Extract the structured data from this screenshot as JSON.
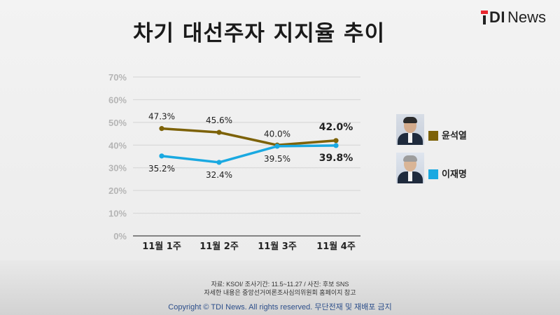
{
  "header": {
    "title": "차기 대선주자 지지율 추이",
    "logo": {
      "mark": "T",
      "tdi": "DI",
      "news": "News"
    }
  },
  "chart_data": {
    "type": "line",
    "categories": [
      "11월 1주",
      "11월 2주",
      "11월 3주",
      "11월 4주"
    ],
    "ylim": [
      0,
      70
    ],
    "yticks": [
      0,
      10,
      20,
      30,
      40,
      50,
      60,
      70
    ],
    "ytick_labels": [
      "0%",
      "10%",
      "20%",
      "30%",
      "40%",
      "50%",
      "60%",
      "70%"
    ],
    "grid": true,
    "legend_position": "right",
    "series": [
      {
        "name": "윤석열",
        "color": "#7d6208",
        "values": [
          47.3,
          45.6,
          40.0,
          42.0
        ],
        "labels": [
          "47.3%",
          "45.6%",
          "40.0%",
          "42.0%"
        ]
      },
      {
        "name": "이재명",
        "color": "#1aa9e1",
        "values": [
          35.2,
          32.4,
          39.5,
          39.8
        ],
        "labels": [
          "35.2%",
          "32.4%",
          "39.5%",
          "39.8%"
        ]
      }
    ]
  },
  "legend": {
    "items": [
      {
        "label": "윤석열",
        "photo": "candidate-photo",
        "color": "#7d6208"
      },
      {
        "label": "이재명",
        "photo": "candidate-photo",
        "color": "#1aa9e1"
      }
    ]
  },
  "footer": {
    "source": "자료: KSOI/ 조사기간: 11.5~11.27 / 사진: 후보 SNS",
    "note": "자세한 내용은 중앙선거여론조사심의위원회 홈페이지 참고",
    "copyright": "Copyright © TDI News. All rights reserved. 무단전재 및 재배포 금지"
  }
}
